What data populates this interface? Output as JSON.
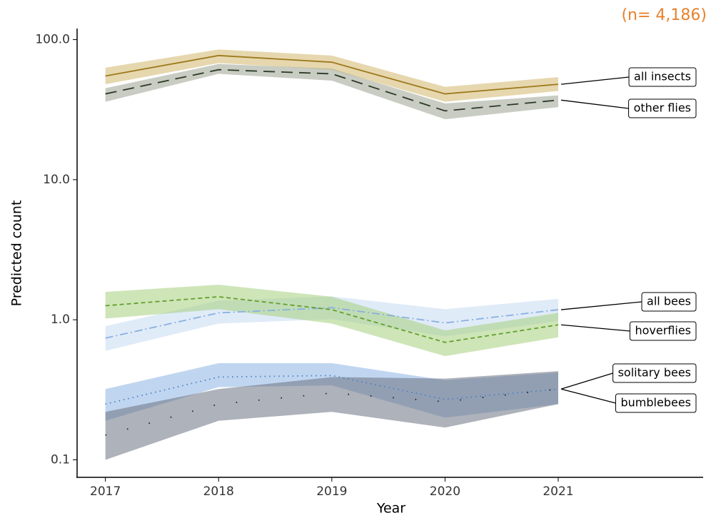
{
  "chart_data": {
    "type": "line",
    "annotation": "(n= 4,186)",
    "x_label": "Year",
    "y_label": "Predicted count",
    "log_y": true,
    "x": [
      2017,
      2018,
      2019,
      2020,
      2021
    ],
    "xlim": [
      2016.75,
      2022.28
    ],
    "xticks": [
      2017,
      2018,
      2019,
      2020,
      2021
    ],
    "ylim": [
      0.075,
      120
    ],
    "yticks": [
      {
        "value": 0.1,
        "label": "0.1"
      },
      {
        "value": 1,
        "label": "1.0"
      },
      {
        "value": 10,
        "label": "10.0"
      },
      {
        "value": 100,
        "label": "100.0"
      }
    ],
    "series": [
      {
        "name": "all insects",
        "color": "#9c7a1c",
        "band_color": "#d2b66c",
        "dash": "solid",
        "values": [
          55,
          77,
          69,
          41,
          48
        ],
        "lower": [
          48,
          68,
          61,
          36,
          43
        ],
        "upper": [
          63,
          85,
          77,
          46,
          54
        ]
      },
      {
        "name": "other flies",
        "color": "#2c3a26",
        "band_color": "#9aa38f",
        "dash": "longdash",
        "values": [
          41,
          61,
          57,
          31,
          37
        ],
        "lower": [
          36,
          57,
          51,
          27,
          33
        ],
        "upper": [
          45,
          67,
          62,
          35,
          40
        ]
      },
      {
        "name": "all bees",
        "color": "#8ab0e0",
        "band_color": "#c6daf3",
        "dash": "dotdash",
        "values": [
          0.74,
          1.12,
          1.22,
          0.95,
          1.18
        ],
        "lower": [
          0.6,
          0.94,
          1.01,
          0.76,
          0.98
        ],
        "upper": [
          0.9,
          1.37,
          1.47,
          1.19,
          1.41
        ]
      },
      {
        "name": "hoverflies",
        "color": "#64a02c",
        "band_color": "#a6cf7e",
        "dash": "dashed",
        "values": [
          1.26,
          1.46,
          1.18,
          0.69,
          0.92
        ],
        "lower": [
          1.02,
          1.19,
          0.94,
          0.55,
          0.75
        ],
        "upper": [
          1.58,
          1.78,
          1.46,
          0.84,
          1.12
        ]
      },
      {
        "name": "solitary bees",
        "color": "#4a7ec0",
        "band_color": "#8cb4e4",
        "dash": "dotted",
        "values": [
          0.25,
          0.39,
          0.4,
          0.27,
          0.32
        ],
        "lower": [
          0.19,
          0.33,
          0.34,
          0.2,
          0.25
        ],
        "upper": [
          0.32,
          0.49,
          0.49,
          0.37,
          0.42
        ]
      },
      {
        "name": "bumblebees",
        "color": "#1e1e1e",
        "band_color": "#6c7282",
        "dash": "sparsedot",
        "values": [
          0.15,
          0.25,
          0.3,
          0.26,
          0.32
        ],
        "lower": [
          0.1,
          0.19,
          0.22,
          0.17,
          0.25
        ],
        "upper": [
          0.22,
          0.32,
          0.39,
          0.38,
          0.43
        ]
      }
    ]
  }
}
